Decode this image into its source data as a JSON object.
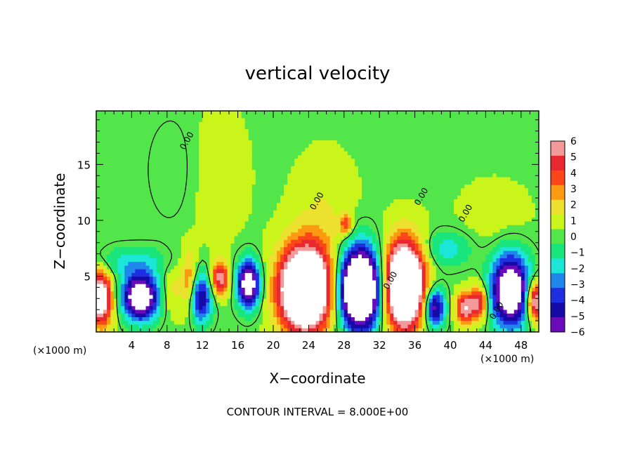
{
  "chart_data": {
    "type": "heatmap",
    "title": "vertical velocity",
    "xlabel": "X−coordinate",
    "ylabel": "Z−coordinate",
    "x_unit_label": "(×1000 m)",
    "z_unit_label": "(×1000 m)",
    "footer": "CONTOUR INTERVAL = 8.000E+00",
    "xlim": [
      0,
      50
    ],
    "ylim": [
      0,
      19.8
    ],
    "x_ticks": [
      4,
      8,
      12,
      16,
      20,
      24,
      28,
      32,
      36,
      40,
      44,
      48
    ],
    "y_ticks": [
      5,
      10,
      15
    ],
    "contour_label": "0.00",
    "colorbar": {
      "range": [
        -6,
        6
      ],
      "labels": [
        "6",
        "5",
        "4",
        "3",
        "2",
        "1",
        "0",
        "−1",
        "−2",
        "−3",
        "−4",
        "−5",
        "−6"
      ],
      "colors": [
        "#f29a9a",
        "#e8282e",
        "#fa4618",
        "#fc9a12",
        "#ece12e",
        "#c9f51a",
        "#52e64a",
        "#18e67c",
        "#1ce6d8",
        "#1f86ec",
        "#1e2ee0",
        "#160aa6",
        "#6a0ab8"
      ]
    },
    "background_value": 0.3,
    "cells": [
      {
        "x": 0.5,
        "z": 3.0,
        "rx": 1.3,
        "rz": 2.4,
        "value": 9
      },
      {
        "x": 5.0,
        "z": 3.1,
        "rx": 2.0,
        "rz": 2.0,
        "value": -10
      },
      {
        "x": 4.0,
        "z": 6.2,
        "rx": 4.5,
        "rz": 1.4,
        "value": -2.2
      },
      {
        "x": 8.5,
        "z": 4.0,
        "rx": 1.2,
        "rz": 2.4,
        "value": 1.6
      },
      {
        "x": 10.5,
        "z": 4.5,
        "rx": 0.9,
        "rz": 2.8,
        "value": 3.5
      },
      {
        "x": 11.8,
        "z": 3.0,
        "rx": 1.3,
        "rz": 2.2,
        "value": -6
      },
      {
        "x": 14.0,
        "z": 4.8,
        "rx": 1.0,
        "rz": 1.6,
        "value": 6
      },
      {
        "x": 17.2,
        "z": 4.3,
        "rx": 1.3,
        "rz": 2.1,
        "value": -9
      },
      {
        "x": 23.6,
        "z": 3.8,
        "rx": 2.9,
        "rz": 3.7,
        "value": 14
      },
      {
        "x": 25.8,
        "z": 9.8,
        "rx": 3.5,
        "rz": 5.5,
        "value": 1.3
      },
      {
        "x": 28.2,
        "z": 9.6,
        "rx": 0.7,
        "rz": 0.9,
        "value": 4
      },
      {
        "x": 29.8,
        "z": 3.9,
        "rx": 2.4,
        "rz": 3.6,
        "value": -14
      },
      {
        "x": 34.8,
        "z": 4.2,
        "rx": 2.3,
        "rz": 3.8,
        "value": 14
      },
      {
        "x": 38.2,
        "z": 2.2,
        "rx": 1.2,
        "rz": 1.8,
        "value": -7
      },
      {
        "x": 39.5,
        "z": 7.4,
        "rx": 2.8,
        "rz": 1.6,
        "value": -2.5
      },
      {
        "x": 41.6,
        "z": 2.1,
        "rx": 1.0,
        "rz": 1.4,
        "value": 6
      },
      {
        "x": 43.2,
        "z": 2.6,
        "rx": 1.0,
        "rz": 1.5,
        "value": 6
      },
      {
        "x": 46.8,
        "z": 3.7,
        "rx": 2.2,
        "rz": 3.2,
        "value": -10
      },
      {
        "x": 49.6,
        "z": 2.8,
        "rx": 1.0,
        "rz": 1.8,
        "value": 8
      },
      {
        "x": 13.5,
        "z": 14.0,
        "rx": 3.5,
        "rz": 6.0,
        "value": 0.9
      },
      {
        "x": 9.0,
        "z": 14.5,
        "rx": 3.2,
        "rz": 5.0,
        "value": -0.8
      },
      {
        "x": 45.0,
        "z": 10.5,
        "rx": 4.0,
        "rz": 3.0,
        "value": 0.8
      }
    ]
  }
}
